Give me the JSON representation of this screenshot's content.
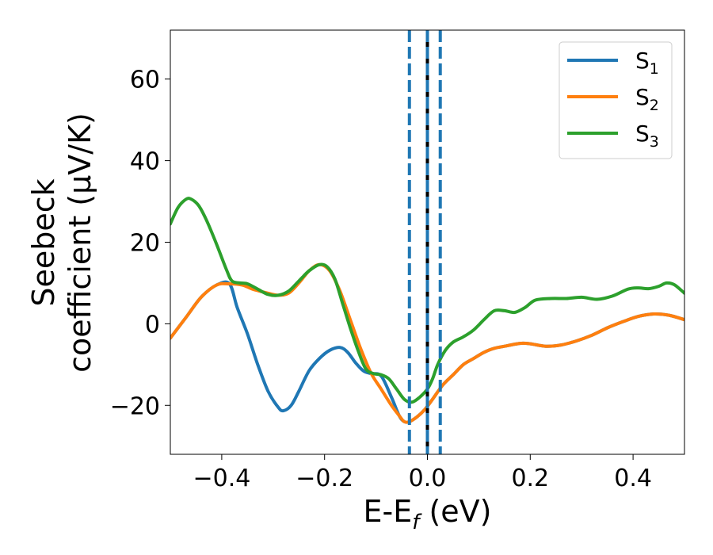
{
  "chart_data": {
    "type": "line",
    "xlabel": {
      "main": "E-E",
      "sub": "f",
      "unit": " (eV)"
    },
    "ylabel": {
      "line1": "Seebeck",
      "line2": "coefficient  (μV/K)"
    },
    "xlim": [
      -0.5,
      0.5
    ],
    "ylim": [
      -32,
      72
    ],
    "xticks": [
      -0.4,
      -0.2,
      0.0,
      0.2,
      0.4
    ],
    "xtick_labels": [
      "−0.4",
      "−0.2",
      "0.0",
      "0.2",
      "0.4"
    ],
    "yticks": [
      -20,
      0,
      20,
      40,
      60
    ],
    "ytick_labels": [
      "−20",
      "0",
      "20",
      "40",
      "60"
    ],
    "grid": false,
    "legend_position": "top-right",
    "vlines": [
      {
        "x": -0.035,
        "style": "dashed",
        "color": "#1f77b4"
      },
      {
        "x": 0.0,
        "style": "solid",
        "color": "#000000"
      },
      {
        "x": 0.0,
        "style": "dashed",
        "color": "#1f77b4"
      },
      {
        "x": 0.025,
        "style": "dashed",
        "color": "#1f77b4"
      }
    ],
    "series": [
      {
        "name": "S",
        "sub": "1",
        "color": "#1f77b4",
        "points": [
          [
            -0.5,
            -3.5
          ],
          [
            -0.47,
            1.5
          ],
          [
            -0.44,
            6.5
          ],
          [
            -0.41,
            9.5
          ],
          [
            -0.385,
            9.8
          ],
          [
            -0.37,
            4.0
          ],
          [
            -0.35,
            -2.5
          ],
          [
            -0.33,
            -10.0
          ],
          [
            -0.31,
            -16.5
          ],
          [
            -0.29,
            -20.5
          ],
          [
            -0.28,
            -21.3
          ],
          [
            -0.265,
            -20.0
          ],
          [
            -0.25,
            -16.5
          ],
          [
            -0.23,
            -11.5
          ],
          [
            -0.21,
            -8.5
          ],
          [
            -0.19,
            -6.5
          ],
          [
            -0.17,
            -5.8
          ],
          [
            -0.155,
            -7.0
          ],
          [
            -0.14,
            -9.5
          ],
          [
            -0.125,
            -11.5
          ],
          [
            -0.11,
            -12.2
          ],
          [
            -0.09,
            -12.8
          ],
          [
            -0.07,
            -18.0
          ],
          [
            -0.055,
            -22.5
          ],
          [
            -0.045,
            -24.0
          ],
          [
            -0.035,
            -24.0
          ],
          [
            -0.02,
            -22.8
          ],
          [
            -0.005,
            -21.0
          ],
          [
            0.01,
            -18.5
          ],
          [
            0.03,
            -15.0
          ],
          [
            0.05,
            -12.5
          ],
          [
            0.07,
            -10.0
          ],
          [
            0.09,
            -8.5
          ],
          [
            0.11,
            -7.0
          ],
          [
            0.13,
            -6.0
          ],
          [
            0.15,
            -5.5
          ],
          [
            0.18,
            -4.8
          ],
          [
            0.2,
            -4.9
          ],
          [
            0.23,
            -5.5
          ],
          [
            0.26,
            -5.2
          ],
          [
            0.29,
            -4.2
          ],
          [
            0.32,
            -2.8
          ],
          [
            0.35,
            -1.0
          ],
          [
            0.38,
            0.5
          ],
          [
            0.41,
            1.8
          ],
          [
            0.44,
            2.4
          ],
          [
            0.47,
            2.1
          ],
          [
            0.5,
            1.0
          ]
        ]
      },
      {
        "name": "S",
        "sub": "2",
        "color": "#ff7f0e",
        "points": [
          [
            -0.5,
            -3.5
          ],
          [
            -0.47,
            1.5
          ],
          [
            -0.44,
            6.5
          ],
          [
            -0.41,
            9.5
          ],
          [
            -0.385,
            9.8
          ],
          [
            -0.36,
            9.5
          ],
          [
            -0.34,
            8.5
          ],
          [
            -0.31,
            7.5
          ],
          [
            -0.29,
            7.0
          ],
          [
            -0.27,
            7.5
          ],
          [
            -0.25,
            10.0
          ],
          [
            -0.23,
            13.0
          ],
          [
            -0.21,
            14.5
          ],
          [
            -0.19,
            13.0
          ],
          [
            -0.17,
            8.0
          ],
          [
            -0.15,
            1.0
          ],
          [
            -0.13,
            -6.0
          ],
          [
            -0.11,
            -12.0
          ],
          [
            -0.09,
            -16.0
          ],
          [
            -0.07,
            -20.0
          ],
          [
            -0.055,
            -22.5
          ],
          [
            -0.045,
            -24.0
          ],
          [
            -0.035,
            -24.0
          ],
          [
            -0.02,
            -22.8
          ],
          [
            -0.005,
            -21.0
          ],
          [
            0.01,
            -18.5
          ],
          [
            0.03,
            -15.0
          ],
          [
            0.05,
            -12.5
          ],
          [
            0.07,
            -10.0
          ],
          [
            0.09,
            -8.5
          ],
          [
            0.11,
            -7.0
          ],
          [
            0.13,
            -6.0
          ],
          [
            0.15,
            -5.5
          ],
          [
            0.18,
            -4.8
          ],
          [
            0.2,
            -4.9
          ],
          [
            0.23,
            -5.5
          ],
          [
            0.26,
            -5.2
          ],
          [
            0.29,
            -4.2
          ],
          [
            0.32,
            -2.8
          ],
          [
            0.35,
            -1.0
          ],
          [
            0.38,
            0.5
          ],
          [
            0.41,
            1.8
          ],
          [
            0.44,
            2.4
          ],
          [
            0.47,
            2.1
          ],
          [
            0.5,
            1.0
          ]
        ]
      },
      {
        "name": "S",
        "sub": "3",
        "color": "#2ca02c",
        "points": [
          [
            -0.5,
            24.5
          ],
          [
            -0.485,
            28.5
          ],
          [
            -0.47,
            30.5
          ],
          [
            -0.46,
            30.6
          ],
          [
            -0.445,
            29.0
          ],
          [
            -0.43,
            25.5
          ],
          [
            -0.41,
            19.5
          ],
          [
            -0.39,
            13.0
          ],
          [
            -0.38,
            10.5
          ],
          [
            -0.365,
            10.0
          ],
          [
            -0.35,
            9.8
          ],
          [
            -0.33,
            8.5
          ],
          [
            -0.31,
            7.2
          ],
          [
            -0.29,
            7.0
          ],
          [
            -0.27,
            8.0
          ],
          [
            -0.25,
            10.5
          ],
          [
            -0.23,
            13.0
          ],
          [
            -0.21,
            14.5
          ],
          [
            -0.195,
            14.0
          ],
          [
            -0.18,
            11.0
          ],
          [
            -0.165,
            5.0
          ],
          [
            -0.15,
            -1.0
          ],
          [
            -0.135,
            -6.5
          ],
          [
            -0.12,
            -11.0
          ],
          [
            -0.105,
            -12.2
          ],
          [
            -0.09,
            -12.5
          ],
          [
            -0.075,
            -13.5
          ],
          [
            -0.06,
            -16.0
          ],
          [
            -0.045,
            -18.5
          ],
          [
            -0.03,
            -19.2
          ],
          [
            -0.015,
            -18.0
          ],
          [
            0.0,
            -16.0
          ],
          [
            0.01,
            -13.5
          ],
          [
            0.02,
            -10.0
          ],
          [
            0.035,
            -6.5
          ],
          [
            0.05,
            -4.5
          ],
          [
            0.07,
            -3.2
          ],
          [
            0.09,
            -1.5
          ],
          [
            0.11,
            1.0
          ],
          [
            0.13,
            3.2
          ],
          [
            0.15,
            3.2
          ],
          [
            0.17,
            2.8
          ],
          [
            0.19,
            4.0
          ],
          [
            0.21,
            5.8
          ],
          [
            0.24,
            6.2
          ],
          [
            0.27,
            6.2
          ],
          [
            0.3,
            6.5
          ],
          [
            0.33,
            6.0
          ],
          [
            0.36,
            6.8
          ],
          [
            0.39,
            8.5
          ],
          [
            0.41,
            8.8
          ],
          [
            0.43,
            8.6
          ],
          [
            0.45,
            9.2
          ],
          [
            0.465,
            10.0
          ],
          [
            0.48,
            9.6
          ],
          [
            0.5,
            7.5
          ]
        ]
      }
    ]
  }
}
